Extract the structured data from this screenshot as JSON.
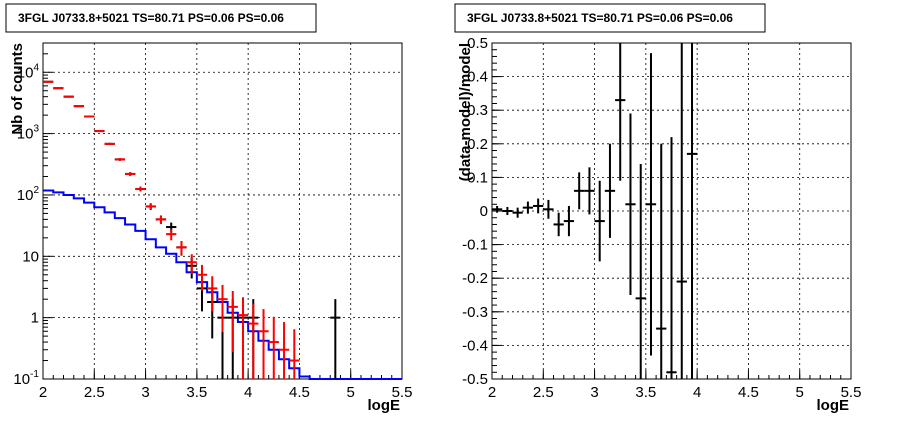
{
  "panels": [
    {
      "title": "3FGL J0733.8+5021 TS=80.71 PS=0.06 PS=0.06",
      "xlabel": "logE",
      "ylabel": "Nb of counts",
      "ylog": true,
      "xlim": [
        2,
        5.5
      ],
      "ylim": [
        0.1,
        30000
      ],
      "xticks": [
        "2",
        "2.5",
        "3",
        "3.5",
        "4",
        "4.5",
        "5",
        "5.5"
      ],
      "yticks": [
        {
          "v": 0.1,
          "base": "10",
          "exp": "-1"
        },
        {
          "v": 1,
          "base": "1",
          "exp": ""
        },
        {
          "v": 10,
          "base": "10",
          "exp": ""
        },
        {
          "v": 100,
          "base": "10",
          "exp": "2"
        },
        {
          "v": 1000,
          "base": "10",
          "exp": "3"
        },
        {
          "v": 10000,
          "base": "10",
          "exp": "4"
        }
      ]
    },
    {
      "title": "3FGL J0733.8+5021 TS=80.71 PS=0.06 PS=0.06",
      "xlabel": "logE",
      "ylabel": "(data-model)/model",
      "ylog": false,
      "xlim": [
        2,
        5.5
      ],
      "ylim": [
        -0.5,
        0.5
      ],
      "xticks": [
        "2",
        "2.5",
        "3",
        "3.5",
        "4",
        "4.5",
        "5",
        "5.5"
      ],
      "yticks": [
        "-0.5",
        "-0.4",
        "-0.3",
        "-0.2",
        "-0.1",
        "0",
        "0.1",
        "0.2",
        "0.3",
        "0.4",
        "0.5"
      ]
    }
  ],
  "chart_data": [
    {
      "type": "line",
      "title": "3FGL J0733.8+5021 TS=80.71 PS=0.06 PS=0.06",
      "xlabel": "logE",
      "ylabel": "Nb of counts",
      "xlim": [
        2,
        5.5
      ],
      "ylim": [
        0.1,
        30000
      ],
      "log_y": true,
      "grid": true,
      "bin_width": 0.1,
      "series": [
        {
          "color": "#000000",
          "style": "points with error bars",
          "x": [
            2.05,
            2.15,
            2.25,
            2.35,
            2.45,
            2.55,
            2.65,
            2.75,
            2.85,
            2.95,
            3.05,
            3.15,
            3.25,
            3.35,
            3.45,
            3.55,
            3.65,
            3.75,
            3.85,
            3.95,
            4.05,
            4.15,
            4.25,
            4.35,
            4.45,
            4.55,
            4.65,
            4.75,
            4.85
          ],
          "y": [
            7000,
            5500,
            4000,
            2800,
            1900,
            1100,
            680,
            380,
            220,
            125,
            65,
            40,
            30,
            14,
            7,
            3,
            1.8,
            1,
            1,
            1,
            1,
            0,
            0,
            0,
            0,
            0,
            0,
            0,
            1
          ]
        },
        {
          "color": "#ff0000",
          "style": "points with error bars",
          "x": [
            2.05,
            2.15,
            2.25,
            2.35,
            2.45,
            2.55,
            2.65,
            2.75,
            2.85,
            2.95,
            3.05,
            3.15,
            3.25,
            3.35,
            3.45,
            3.55,
            3.65,
            3.75,
            3.85,
            3.95,
            4.05,
            4.15,
            4.25,
            4.35,
            4.45
          ],
          "y": [
            7000,
            5500,
            4000,
            2800,
            1900,
            1100,
            680,
            380,
            220,
            125,
            65,
            40,
            23,
            14,
            8,
            5,
            3,
            2,
            1.5,
            1.1,
            0.8,
            0.6,
            0.4,
            0.3,
            0.2
          ]
        },
        {
          "color": "#0000ff",
          "style": "histogram",
          "x": [
            2.05,
            2.15,
            2.25,
            2.35,
            2.45,
            2.55,
            2.65,
            2.75,
            2.85,
            2.95,
            3.05,
            3.15,
            3.25,
            3.35,
            3.45,
            3.55,
            3.65,
            3.75,
            3.85,
            3.95,
            4.05,
            4.15,
            4.25,
            4.35,
            4.45,
            4.55,
            4.65,
            4.75,
            4.85,
            4.95,
            5.05,
            5.15,
            5.25,
            5.35,
            5.45
          ],
          "y": [
            118,
            110,
            100,
            88,
            75,
            63,
            52,
            42,
            33,
            26,
            19,
            14,
            11,
            8,
            5.5,
            3.8,
            2.6,
            1.8,
            1.2,
            0.85,
            0.6,
            0.42,
            0.3,
            0.21,
            0.15,
            0.11,
            0.1,
            0.1,
            0.1,
            0.1,
            0.1,
            0.1,
            0.1,
            0.1,
            0.1
          ]
        }
      ]
    },
    {
      "type": "scatter",
      "title": "3FGL J0733.8+5021 TS=80.71 PS=0.06 PS=0.06",
      "xlabel": "logE",
      "ylabel": "(data-model)/model",
      "xlim": [
        2,
        5.5
      ],
      "ylim": [
        -0.5,
        0.5
      ],
      "grid": true,
      "bin_width": 0.1,
      "series": [
        {
          "color": "#000000",
          "style": "points with error bars",
          "x": [
            2.05,
            2.15,
            2.25,
            2.35,
            2.45,
            2.55,
            2.65,
            2.75,
            2.85,
            2.95,
            3.05,
            3.15,
            3.25,
            3.35,
            3.45,
            3.55,
            3.65,
            3.75,
            3.85,
            3.95
          ],
          "y": [
            0.005,
            0.0,
            -0.005,
            0.01,
            0.015,
            0.005,
            -0.04,
            -0.03,
            0.06,
            0.06,
            -0.03,
            0.06,
            0.33,
            0.02,
            -0.26,
            0.02,
            -0.35,
            -0.48,
            -0.21,
            0.17
          ],
          "yerr": [
            0.01,
            0.012,
            0.015,
            0.018,
            0.022,
            0.028,
            0.035,
            0.045,
            0.055,
            0.07,
            0.12,
            0.14,
            0.24,
            0.27,
            0.4,
            0.45,
            0.55,
            0.7,
            0.75,
            0.9
          ]
        }
      ]
    }
  ]
}
